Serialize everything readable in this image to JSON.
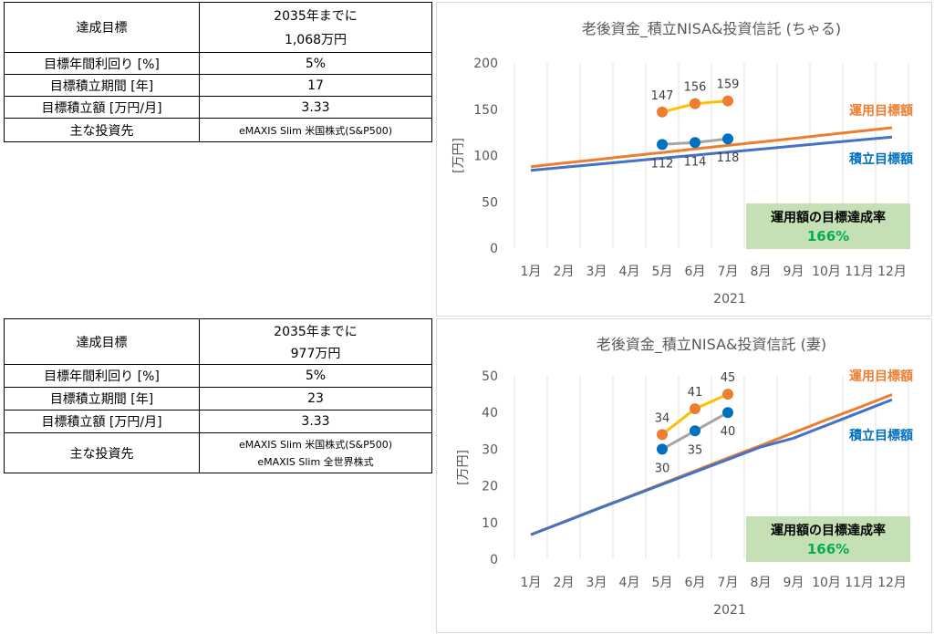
{
  "table1": {
    "rows": [
      {
        "label": "達成目標",
        "value_line1": "2035年までに",
        "value_line2": "1,068万円"
      },
      {
        "label": "目標年間利回り [%]",
        "value": "5%"
      },
      {
        "label": "目標積立期間 [年]",
        "value": "17"
      },
      {
        "label": "目標積立額 [万円/月]",
        "value": "3.33"
      },
      {
        "label": "主な投資先",
        "value": "eMAXIS Slim 米国株式(S&P500)"
      }
    ]
  },
  "table2": {
    "rows": [
      {
        "label": "達成目標",
        "value_line1": "2035年までに",
        "value_line2": "977万円"
      },
      {
        "label": "目標年間利回り [%]",
        "value": "5%"
      },
      {
        "label": "目標積立期間 [年]",
        "value": "23"
      },
      {
        "label": "目標積立額 [万円/月]",
        "value": "3.33"
      },
      {
        "label": "主な投資先",
        "value_line1": "eMAXIS Slim 米国株式(S&P500)",
        "value_line2": "eMAXIS Slim 全世界株式"
      }
    ]
  },
  "chart_data": [
    {
      "type": "line",
      "title": "老後資金_積立NISA&投資信託 (ちゃる)",
      "xlabel": "2021",
      "ylabel": "[万円]",
      "categories": [
        "1月",
        "2月",
        "3月",
        "4月",
        "5月",
        "6月",
        "7月",
        "8月",
        "9月",
        "10月",
        "11月",
        "12月"
      ],
      "ylim": [
        0,
        200
      ],
      "yticks": [
        0,
        50,
        100,
        150,
        200
      ],
      "grid": "vertical",
      "series": [
        {
          "name": "運用目標額",
          "color": "#ed7d31",
          "values": [
            88,
            91.8,
            95.6,
            99.5,
            103.3,
            107.1,
            110.9,
            114.7,
            118.5,
            122.4,
            126.2,
            130
          ]
        },
        {
          "name": "積立目標額",
          "color": "#4472c4",
          "values": [
            84,
            87.3,
            90.5,
            93.8,
            97.1,
            100.4,
            103.6,
            106.9,
            110.2,
            113.5,
            116.7,
            120
          ]
        },
        {
          "name": "",
          "color": "#ffc000",
          "marker_color": "#ed7d31",
          "label_pos": "above",
          "values": [
            null,
            null,
            null,
            null,
            147,
            156,
            159,
            null,
            null,
            null,
            null,
            null
          ]
        },
        {
          "name": "",
          "color": "#a5a5a5",
          "marker_color": "#0070c0",
          "label_pos": "below",
          "values": [
            null,
            null,
            null,
            null,
            112,
            114,
            118,
            null,
            null,
            null,
            null,
            null
          ]
        }
      ],
      "kpi": {
        "label": "運用額の目標達成率",
        "value": "166%",
        "bg": "#c5e0b4"
      },
      "series_label_colors": {
        "運用目標額": "#ed7d31",
        "積立目標額": "#0070c0"
      }
    },
    {
      "type": "line",
      "title": "老後資金_積立NISA&投資信託 (妻)",
      "xlabel": "2021",
      "ylabel": "[万円]",
      "categories": [
        "1月",
        "2月",
        "3月",
        "4月",
        "5月",
        "6月",
        "7月",
        "8月",
        "9月",
        "10月",
        "11月",
        "12月"
      ],
      "ylim": [
        0,
        50
      ],
      "yticks": [
        0,
        10,
        20,
        30,
        40,
        50
      ],
      "grid": "vertical",
      "series": [
        {
          "name": "運用目標額",
          "color": "#ed7d31",
          "values": [
            6.7,
            10.2,
            13.7,
            17.1,
            20.6,
            24.1,
            27.6,
            31.0,
            34.5,
            38.0,
            41.4,
            44.9
          ]
        },
        {
          "name": "積立目標額",
          "color": "#4472c4",
          "values": [
            6.7,
            10.1,
            13.6,
            17.0,
            20.4,
            23.8,
            27.2,
            30.6,
            33.0,
            36.5,
            40.0,
            43.5
          ]
        },
        {
          "name": "",
          "color": "#ffc000",
          "marker_color": "#ed7d31",
          "label_pos": "above",
          "values": [
            null,
            null,
            null,
            null,
            34,
            41,
            45,
            null,
            null,
            null,
            null,
            null
          ]
        },
        {
          "name": "",
          "color": "#a5a5a5",
          "marker_color": "#0070c0",
          "label_pos": "below",
          "values": [
            null,
            null,
            null,
            null,
            30,
            35,
            40,
            null,
            null,
            null,
            null,
            null
          ]
        }
      ],
      "kpi": {
        "label": "運用額の目標達成率",
        "value": "166%",
        "bg": "#c5e0b4"
      },
      "series_label_colors": {
        "運用目標額": "#ed7d31",
        "積立目標額": "#0070c0"
      }
    }
  ]
}
